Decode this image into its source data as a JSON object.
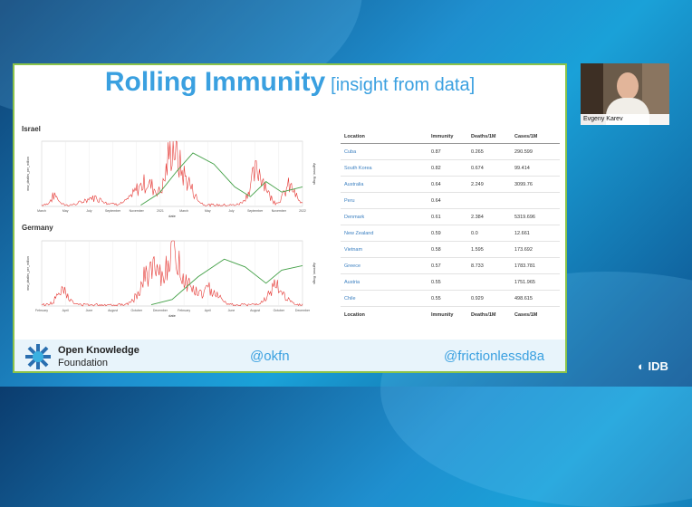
{
  "slide": {
    "title": "Rolling Immunity",
    "subtitle": "[insight from data]"
  },
  "charts": {
    "israel_title": "Israel",
    "germany_title": "Germany",
    "xlabel": "date",
    "ylabel_left": "new_deaths_per_million",
    "ylabel_right": "Agrimmi, Rings",
    "israel_xticks": [
      "March",
      "May",
      "July",
      "September",
      "November",
      "2021",
      "March",
      "May",
      "July",
      "September",
      "November",
      "2022"
    ],
    "germany_xticks": [
      "February",
      "April",
      "June",
      "August",
      "October",
      "December",
      "February",
      "April",
      "June",
      "August",
      "October",
      "December"
    ]
  },
  "table": {
    "headers": [
      "Location",
      "Immunity",
      "Deaths/1M",
      "Cases/1M"
    ],
    "rows": [
      [
        "Cuba",
        "0.87",
        "0.265",
        "290.599"
      ],
      [
        "South Korea",
        "0.82",
        "0.674",
        "99.414"
      ],
      [
        "Australia",
        "0.64",
        "2.249",
        "3099.76"
      ],
      [
        "Peru",
        "0.64",
        "",
        ""
      ],
      [
        "Denmark",
        "0.61",
        "2.384",
        "5319.696"
      ],
      [
        "New Zealand",
        "0.59",
        "0.0",
        "12.661"
      ],
      [
        "Vietnam",
        "0.58",
        "1.595",
        "173.692"
      ],
      [
        "Greece",
        "0.57",
        "8.733",
        "1783.781"
      ],
      [
        "Austria",
        "0.55",
        "",
        "1751.965"
      ],
      [
        "Chile",
        "0.55",
        "0.929",
        "498.615"
      ]
    ]
  },
  "footer": {
    "org_name": "Open Knowledge",
    "org_sub": "Foundation",
    "handle_left": "@okfn",
    "handle_right": "@frictionlessd8a"
  },
  "participant": {
    "name": "Evgeny Karev"
  },
  "brand": {
    "idb": "IDB"
  },
  "colors": {
    "accent": "#3aa0e0",
    "deaths": "#e53935",
    "immunity": "#43a047",
    "border": "#8bc34a"
  }
}
